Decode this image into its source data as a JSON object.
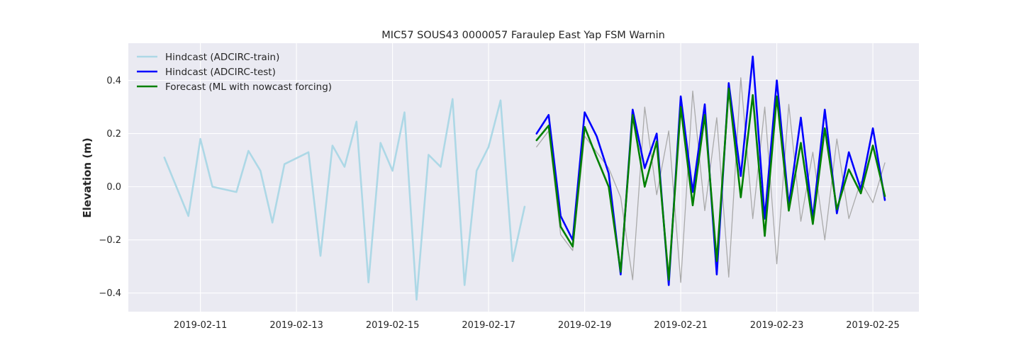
{
  "chart_data": {
    "type": "line",
    "title": "MIC57 SOUS43 0000057 Faraulep East Yap FSM Warnin",
    "xlabel": "",
    "ylabel": "Elevation (m)",
    "xlim": [
      "2019-02-09T12:00",
      "2019-02-25T23:00"
    ],
    "ylim": [
      -0.47,
      0.54
    ],
    "grid": true,
    "legend_position": "top-left",
    "x_ticks": [
      "2019-02-11",
      "2019-02-13",
      "2019-02-15",
      "2019-02-17",
      "2019-02-19",
      "2019-02-21",
      "2019-02-23",
      "2019-02-25"
    ],
    "y_ticks": [
      -0.4,
      -0.2,
      0.0,
      0.2,
      0.4
    ],
    "y_tick_labels": [
      "−0.4",
      "−0.2",
      "0.0",
      "0.2",
      "0.4"
    ],
    "series": [
      {
        "name": "Hindcast (ADCIRC-train)",
        "color": "#add8e6",
        "width": 2.6,
        "x": [
          "2019-02-10T06:00",
          "2019-02-10T18:00",
          "2019-02-11T00:00",
          "2019-02-11T06:00",
          "2019-02-11T18:00",
          "2019-02-12T00:00",
          "2019-02-12T06:00",
          "2019-02-12T12:00",
          "2019-02-12T18:00",
          "2019-02-13T06:00",
          "2019-02-13T12:00",
          "2019-02-13T18:00",
          "2019-02-14T00:00",
          "2019-02-14T06:00",
          "2019-02-14T12:00",
          "2019-02-14T18:00",
          "2019-02-15T00:00",
          "2019-02-15T06:00",
          "2019-02-15T12:00",
          "2019-02-15T18:00",
          "2019-02-16T00:00",
          "2019-02-16T06:00",
          "2019-02-16T12:00",
          "2019-02-16T18:00",
          "2019-02-17T00:00",
          "2019-02-17T06:00",
          "2019-02-17T12:00",
          "2019-02-17T18:00"
        ],
        "y": [
          0.11,
          -0.11,
          0.18,
          0.0,
          -0.02,
          0.135,
          0.06,
          -0.135,
          0.085,
          0.13,
          -0.26,
          0.155,
          0.075,
          0.245,
          -0.36,
          0.165,
          0.06,
          0.28,
          -0.425,
          0.12,
          0.075,
          0.33,
          -0.37,
          0.06,
          0.15,
          0.325,
          -0.28,
          -0.075
        ]
      },
      {
        "name": "",
        "color": "#aaaaaa",
        "width": 1.3,
        "x": [
          "2019-02-18T00:00",
          "2019-02-18T06:00",
          "2019-02-18T12:00",
          "2019-02-18T18:00",
          "2019-02-19T00:00",
          "2019-02-19T12:00",
          "2019-02-19T18:00",
          "2019-02-20T00:00",
          "2019-02-20T06:00",
          "2019-02-20T12:00",
          "2019-02-20T18:00",
          "2019-02-21T00:00",
          "2019-02-21T06:00",
          "2019-02-21T12:00",
          "2019-02-21T18:00",
          "2019-02-22T00:00",
          "2019-02-22T06:00",
          "2019-02-22T12:00",
          "2019-02-22T18:00",
          "2019-02-23T00:00",
          "2019-02-23T06:00",
          "2019-02-23T12:00",
          "2019-02-23T18:00",
          "2019-02-24T00:00",
          "2019-02-24T06:00",
          "2019-02-24T12:00",
          "2019-02-24T18:00",
          "2019-02-25T00:00",
          "2019-02-25T06:00"
        ],
        "y": [
          0.15,
          0.21,
          -0.18,
          -0.24,
          0.19,
          0.07,
          -0.04,
          -0.35,
          0.3,
          -0.03,
          0.21,
          -0.36,
          0.36,
          -0.09,
          0.26,
          -0.34,
          0.41,
          -0.12,
          0.3,
          -0.29,
          0.31,
          -0.13,
          0.13,
          -0.2,
          0.18,
          -0.12,
          0.02,
          -0.06,
          0.09
        ]
      },
      {
        "name": "Hindcast (ADCIRC-test)",
        "color": "#0000ff",
        "width": 2.6,
        "x": [
          "2019-02-18T00:00",
          "2019-02-18T06:00",
          "2019-02-18T12:00",
          "2019-02-18T18:00",
          "2019-02-19T00:00",
          "2019-02-19T06:00",
          "2019-02-19T12:00",
          "2019-02-19T18:00",
          "2019-02-20T00:00",
          "2019-02-20T06:00",
          "2019-02-20T12:00",
          "2019-02-20T18:00",
          "2019-02-21T00:00",
          "2019-02-21T06:00",
          "2019-02-21T12:00",
          "2019-02-21T18:00",
          "2019-02-22T00:00",
          "2019-02-22T06:00",
          "2019-02-22T12:00",
          "2019-02-22T18:00",
          "2019-02-23T00:00",
          "2019-02-23T06:00",
          "2019-02-23T12:00",
          "2019-02-23T18:00",
          "2019-02-24T00:00",
          "2019-02-24T06:00",
          "2019-02-24T12:00",
          "2019-02-24T18:00",
          "2019-02-25T00:00",
          "2019-02-25T06:00"
        ],
        "y": [
          0.2,
          0.27,
          -0.11,
          -0.2,
          0.28,
          0.19,
          0.05,
          -0.33,
          0.29,
          0.07,
          0.2,
          -0.37,
          0.34,
          -0.02,
          0.31,
          -0.33,
          0.39,
          0.04,
          0.49,
          -0.12,
          0.4,
          -0.07,
          0.26,
          -0.12,
          0.29,
          -0.1,
          0.13,
          -0.01,
          0.22,
          -0.05
        ]
      },
      {
        "name": "Forecast (ML with nowcast forcing)",
        "color": "#008000",
        "width": 2.6,
        "x": [
          "2019-02-18T00:00",
          "2019-02-18T06:00",
          "2019-02-18T12:00",
          "2019-02-18T18:00",
          "2019-02-19T00:00",
          "2019-02-19T06:00",
          "2019-02-19T12:00",
          "2019-02-19T18:00",
          "2019-02-20T00:00",
          "2019-02-20T06:00",
          "2019-02-20T12:00",
          "2019-02-20T18:00",
          "2019-02-21T00:00",
          "2019-02-21T06:00",
          "2019-02-21T12:00",
          "2019-02-21T18:00",
          "2019-02-22T00:00",
          "2019-02-22T06:00",
          "2019-02-22T12:00",
          "2019-02-22T18:00",
          "2019-02-23T00:00",
          "2019-02-23T06:00",
          "2019-02-23T12:00",
          "2019-02-23T18:00",
          "2019-02-24T00:00",
          "2019-02-24T06:00",
          "2019-02-24T12:00",
          "2019-02-24T18:00",
          "2019-02-25T00:00",
          "2019-02-25T06:00"
        ],
        "y": [
          0.175,
          0.23,
          -0.15,
          -0.225,
          0.225,
          0.11,
          0.0,
          -0.32,
          0.27,
          0.0,
          0.17,
          -0.35,
          0.3,
          -0.07,
          0.27,
          -0.28,
          0.37,
          -0.04,
          0.345,
          -0.185,
          0.34,
          -0.09,
          0.165,
          -0.14,
          0.22,
          -0.085,
          0.065,
          -0.025,
          0.155,
          -0.035
        ]
      }
    ]
  }
}
